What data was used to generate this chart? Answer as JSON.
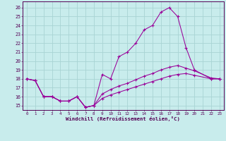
{
  "background_color": "#c8ecec",
  "grid_color": "#a8d4d4",
  "line_color": "#990099",
  "xlabel": "Windchill (Refroidissement éolien,°C)",
  "xlim_min": -0.5,
  "xlim_max": 23.5,
  "ylim_min": 14.5,
  "ylim_max": 26.7,
  "xticks": [
    0,
    1,
    2,
    3,
    4,
    5,
    6,
    7,
    8,
    9,
    10,
    11,
    12,
    13,
    14,
    15,
    16,
    17,
    18,
    19,
    20,
    21,
    22,
    23
  ],
  "yticks": [
    15,
    16,
    17,
    18,
    19,
    20,
    21,
    22,
    23,
    24,
    25,
    26
  ],
  "line1_x": [
    0,
    1,
    2,
    3,
    4,
    5,
    6,
    7,
    8,
    9,
    10,
    11,
    12,
    13,
    14,
    15,
    16,
    17,
    18,
    19,
    20,
    22,
    23
  ],
  "line1_y": [
    18.0,
    17.8,
    16.0,
    16.0,
    15.5,
    15.5,
    16.0,
    14.8,
    15.0,
    18.5,
    18.0,
    20.5,
    21.0,
    22.0,
    23.5,
    24.0,
    25.5,
    26.0,
    25.0,
    21.5,
    19.0,
    18.0,
    18.0
  ],
  "line2_x": [
    0,
    1,
    2,
    3,
    4,
    5,
    6,
    7,
    8,
    9,
    10,
    11,
    12,
    13,
    14,
    15,
    16,
    17,
    18,
    19,
    20,
    22,
    23
  ],
  "line2_y": [
    18.0,
    17.8,
    16.0,
    16.0,
    15.5,
    15.5,
    16.0,
    14.8,
    15.0,
    16.3,
    16.8,
    17.2,
    17.5,
    17.9,
    18.3,
    18.6,
    19.0,
    19.3,
    19.5,
    19.2,
    18.9,
    18.1,
    18.0
  ],
  "line3_x": [
    0,
    1,
    2,
    3,
    4,
    5,
    6,
    7,
    8,
    9,
    10,
    11,
    12,
    13,
    14,
    15,
    16,
    17,
    18,
    19,
    20,
    22,
    23
  ],
  "line3_y": [
    18.0,
    17.8,
    16.0,
    16.0,
    15.5,
    15.5,
    16.0,
    14.8,
    15.0,
    15.8,
    16.2,
    16.5,
    16.8,
    17.1,
    17.4,
    17.7,
    18.0,
    18.3,
    18.5,
    18.6,
    18.4,
    18.0,
    18.0
  ]
}
